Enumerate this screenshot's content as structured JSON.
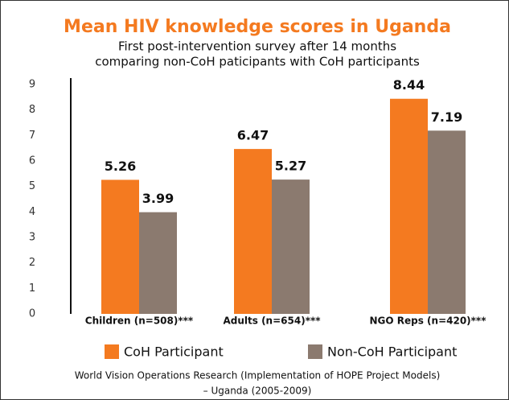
{
  "chart_data": {
    "type": "bar",
    "title": "Mean HIV knowledge scores in Uganda",
    "subtitle": [
      "First post-intervention survey after 14 months",
      "comparing non-CoH paticipants with CoH participants"
    ],
    "categories": [
      "Children (n=508)***",
      "Adults (n=654)***",
      "NGO Reps (n=420)***"
    ],
    "series": [
      {
        "name": "CoH Participant",
        "color": "#f47a20",
        "values": [
          5.26,
          6.47,
          8.44
        ]
      },
      {
        "name": "Non-CoH Participant",
        "color": "#8b7a6f",
        "values": [
          3.99,
          5.27,
          7.19
        ]
      }
    ],
    "ylim": [
      0,
      9
    ],
    "yticks": [
      0,
      1,
      2,
      3,
      4,
      5,
      6,
      7,
      8,
      9
    ],
    "grid": false,
    "footer": [
      "World Vision Operations Research (Implementation of HOPE Project Models)",
      "– Uganda (2005-2009)"
    ]
  }
}
